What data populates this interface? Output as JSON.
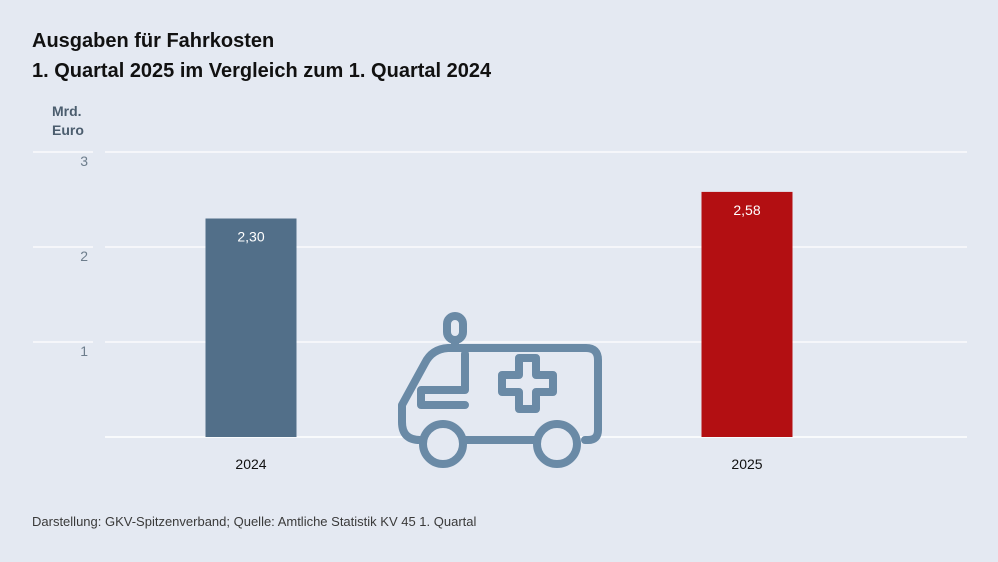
{
  "title_line1": "Ausgaben für Fahrkosten",
  "title_line2": "1. Quartal 2025 im Vergleich zum 1. Quartal 2024",
  "y_unit": "Mrd.\nEuro",
  "source": "Darstellung: GKV-Spitzenverband; Quelle: Amtliche Statistik KV 45 1. Quartal",
  "icon": "ambulance-icon",
  "colors": {
    "background": "#e4e9f2",
    "bar_2024": "#526f89",
    "bar_2025": "#b30f12",
    "icon": "#6a8aa6",
    "grid": "#ffffff"
  },
  "chart_data": {
    "type": "bar",
    "title": "Ausgaben für Fahrkosten",
    "subtitle": "1. Quartal 2025 im Vergleich zum 1. Quartal 2024",
    "ylabel": "Mrd. Euro",
    "xlabel": "",
    "categories": [
      "2024",
      "2025"
    ],
    "values": [
      2.3,
      2.58
    ],
    "value_labels": [
      "2,30",
      "2,58"
    ],
    "yticks": [
      1,
      2,
      3
    ],
    "ylim": [
      0,
      3
    ],
    "grid": true,
    "legend": "none"
  }
}
